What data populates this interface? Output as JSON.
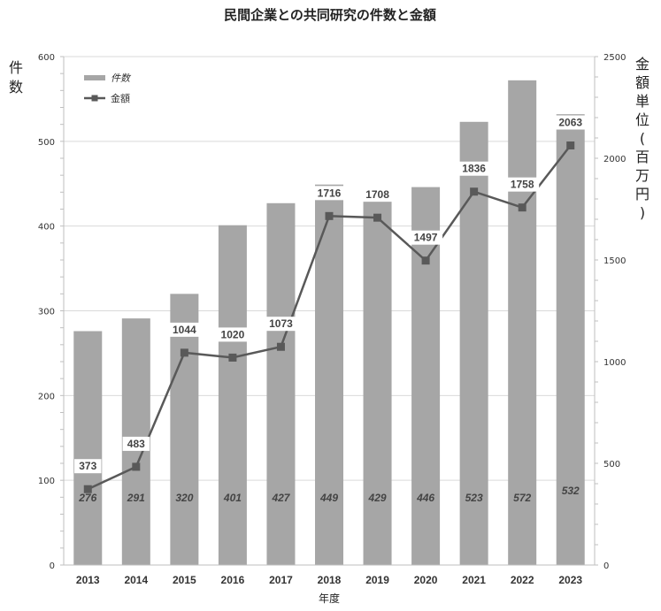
{
  "chart_data": {
    "type": "bar+line",
    "title": "民間企業との共同研究の件数と金額",
    "xlabel": "年度",
    "ylabel_left": "件数",
    "ylabel_right": "金額単位(百万円)",
    "categories": [
      "2013",
      "2014",
      "2015",
      "2016",
      "2017",
      "2018",
      "2019",
      "2020",
      "2021",
      "2022",
      "2023"
    ],
    "series": [
      {
        "name": "件数",
        "type": "bar",
        "axis": "left",
        "values": [
          276,
          291,
          320,
          401,
          427,
          449,
          429,
          446,
          523,
          572,
          532
        ],
        "labels": [
          "276",
          "291",
          "320",
          "401",
          "427",
          "449",
          "429",
          "446",
          "523",
          "572",
          "532"
        ],
        "color": "#a6a6a6"
      },
      {
        "name": "金額",
        "type": "line",
        "axis": "right",
        "values": [
          373,
          483,
          1044,
          1020,
          1073,
          1716,
          1708,
          1497,
          1836,
          1758,
          2063
        ],
        "labels": [
          "373",
          "483",
          "1044",
          "1020",
          "1073",
          "1716",
          "1708",
          "1497",
          "1836",
          "1758",
          "2063"
        ],
        "color": "#595959"
      }
    ],
    "ylim_left": [
      0,
      600
    ],
    "yticks_left": [
      "0",
      "100",
      "200",
      "300",
      "400",
      "500",
      "600"
    ],
    "ylim_right": [
      0,
      2500
    ],
    "yticks_right": [
      "0",
      "500",
      "1000",
      "1500",
      "2000",
      "2500"
    ],
    "grid": true,
    "legend": "top-left"
  }
}
